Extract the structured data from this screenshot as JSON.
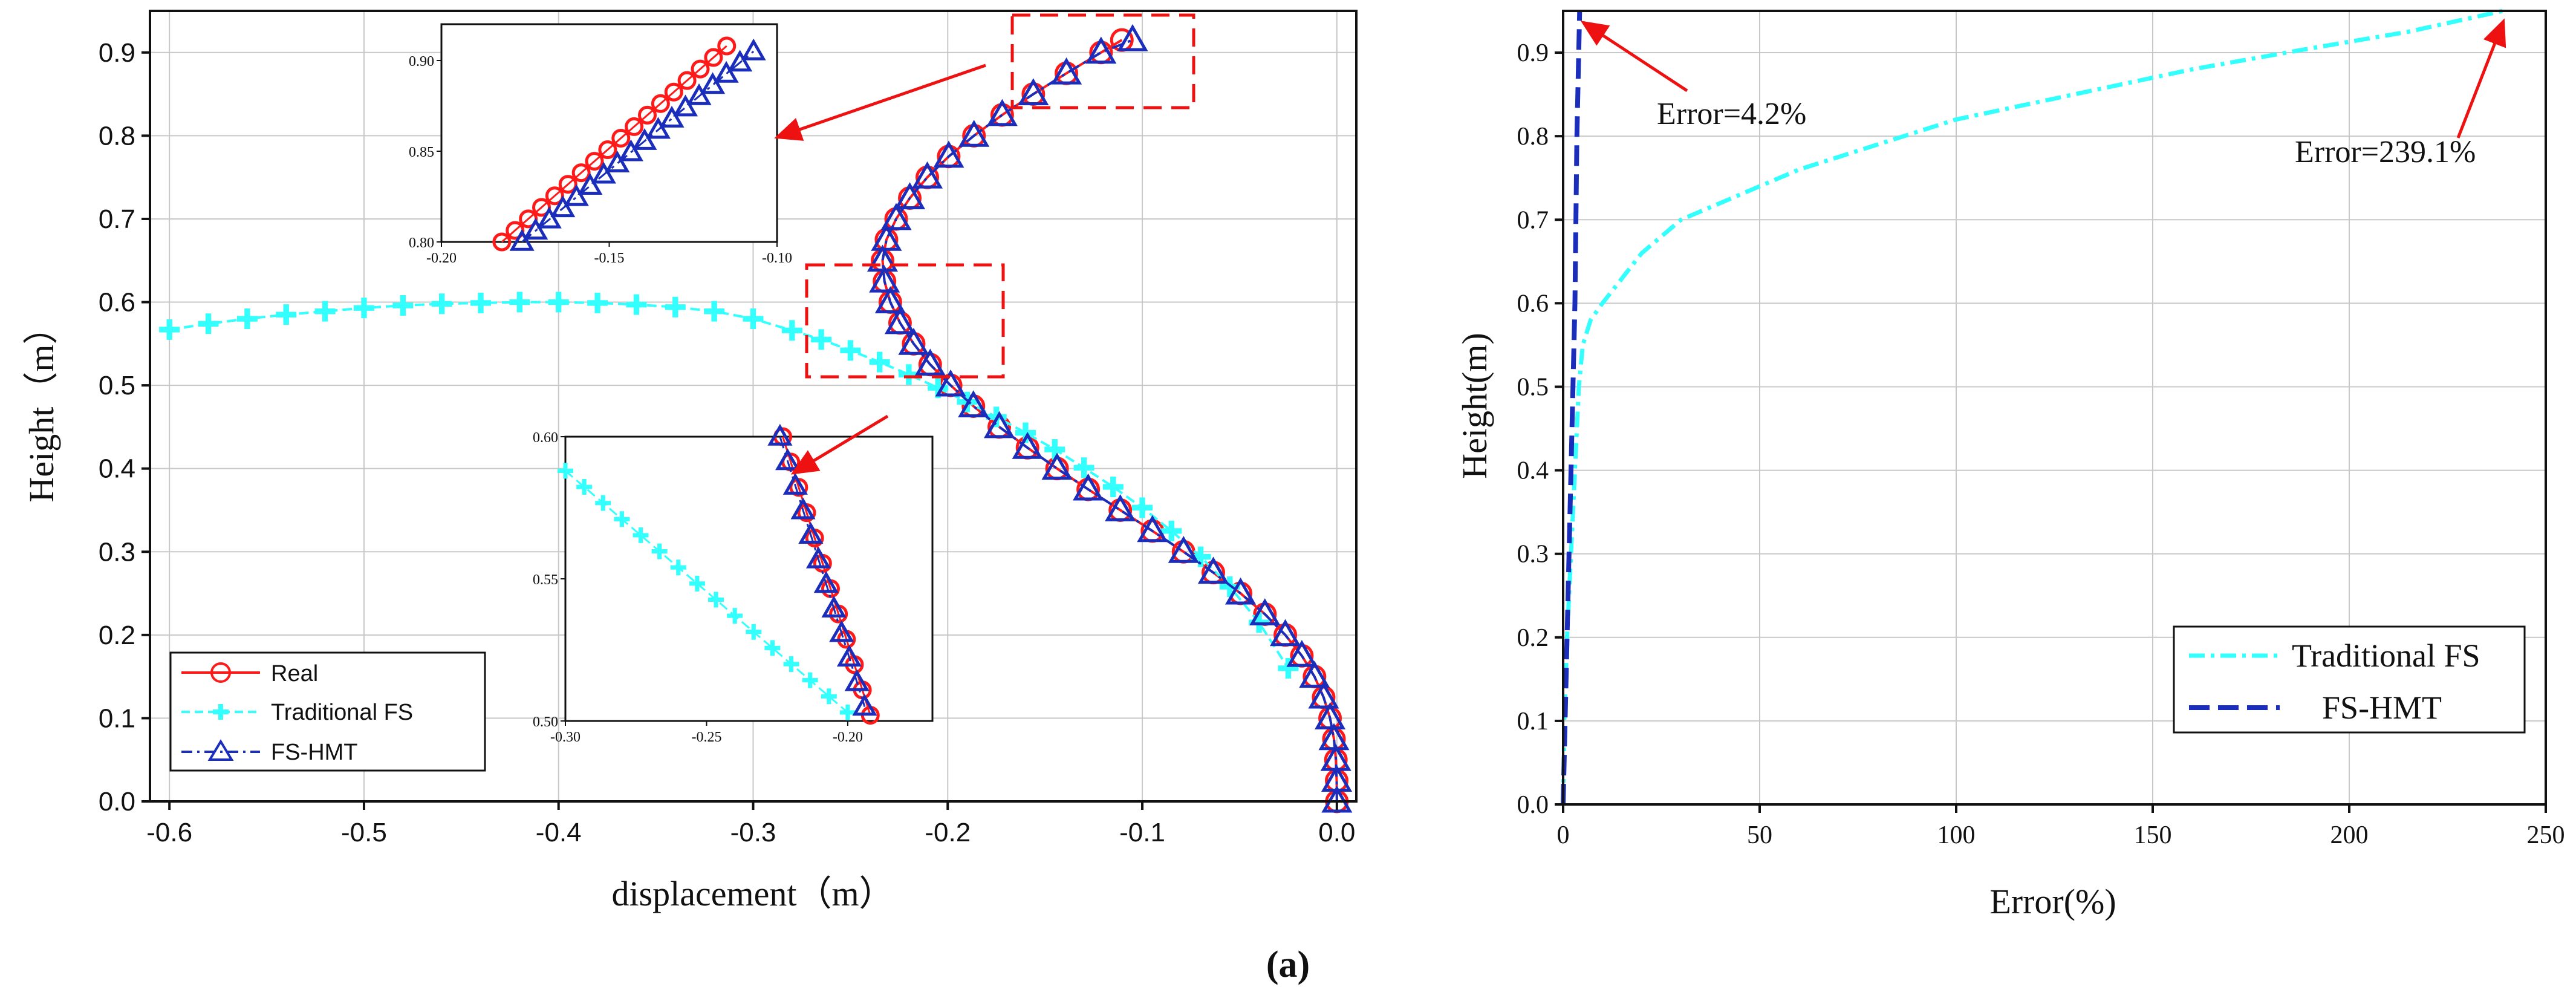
{
  "caption": "(a)",
  "colors": {
    "real": "#ff1a1a",
    "traditional": "#33ffff",
    "fshmt": "#1a2ebb",
    "arrow": "#ee1111"
  },
  "chart_data": [
    {
      "type": "line",
      "title": "",
      "xlabel": "displacement（m）",
      "ylabel": "Height（m）",
      "xlim": [
        -0.61,
        0.01
      ],
      "ylim": [
        0.0,
        0.95
      ],
      "xticks": [
        -0.6,
        -0.5,
        -0.4,
        -0.3,
        -0.2,
        -0.1,
        0.0
      ],
      "xtick_labels": [
        "-0.6",
        "-0.5",
        "-0.4",
        "-0.3",
        "-0.2",
        "-0.1",
        "0.0"
      ],
      "yticks": [
        0.0,
        0.1,
        0.2,
        0.3,
        0.4,
        0.5,
        0.6,
        0.7,
        0.8,
        0.9
      ],
      "ytick_labels": [
        "0.0",
        "0.1",
        "0.2",
        "0.3",
        "0.4",
        "0.5",
        "0.6",
        "0.7",
        "0.8",
        "0.9"
      ],
      "grid": true,
      "legend": "bottom-left",
      "series": [
        {
          "name": "Real",
          "marker": "circle",
          "x": [
            0,
            -0.0001,
            -0.0005,
            -0.0015,
            -0.0035,
            -0.0068,
            -0.0115,
            -0.018,
            -0.0265,
            -0.037,
            -0.0495,
            -0.0635,
            -0.0788,
            -0.0948,
            -0.1113,
            -0.1278,
            -0.1438,
            -0.159,
            -0.1735,
            -0.1868,
            -0.1985,
            -0.209,
            -0.2175,
            -0.2245,
            -0.2295,
            -0.2325,
            -0.2335,
            -0.2315,
            -0.2265,
            -0.2195,
            -0.2105,
            -0.1995,
            -0.1865,
            -0.172,
            -0.156,
            -0.139,
            -0.1212,
            -0.1105
          ],
          "y": [
            0,
            0.025,
            0.05,
            0.075,
            0.1,
            0.125,
            0.15,
            0.175,
            0.2,
            0.225,
            0.25,
            0.275,
            0.3,
            0.325,
            0.35,
            0.375,
            0.4,
            0.425,
            0.45,
            0.475,
            0.5,
            0.525,
            0.55,
            0.575,
            0.6,
            0.625,
            0.65,
            0.675,
            0.7,
            0.725,
            0.75,
            0.775,
            0.8,
            0.825,
            0.85,
            0.875,
            0.9,
            0.915
          ]
        },
        {
          "name": "Traditional FS",
          "marker": "plus",
          "x": [
            -0.6,
            -0.58,
            -0.56,
            -0.54,
            -0.52,
            -0.5,
            -0.48,
            -0.46,
            -0.44,
            -0.42,
            -0.4,
            -0.38,
            -0.36,
            -0.34,
            -0.32,
            -0.3,
            -0.28,
            -0.265,
            -0.25,
            -0.235,
            -0.22,
            -0.205,
            -0.19,
            -0.175,
            -0.16,
            -0.145,
            -0.13,
            -0.115,
            -0.1,
            -0.085,
            -0.07,
            -0.055,
            -0.04,
            -0.025
          ],
          "y": [
            0.567,
            0.574,
            0.58,
            0.585,
            0.589,
            0.593,
            0.596,
            0.598,
            0.599,
            0.6,
            0.6,
            0.599,
            0.597,
            0.594,
            0.589,
            0.58,
            0.566,
            0.555,
            0.542,
            0.528,
            0.513,
            0.497,
            0.48,
            0.462,
            0.443,
            0.423,
            0.401,
            0.378,
            0.353,
            0.325,
            0.294,
            0.258,
            0.215,
            0.16
          ]
        },
        {
          "name": "FS-HMT",
          "marker": "triangle",
          "x": [
            0,
            -0.0001,
            -0.0005,
            -0.0015,
            -0.0035,
            -0.0068,
            -0.0115,
            -0.018,
            -0.0265,
            -0.037,
            -0.0495,
            -0.0635,
            -0.0788,
            -0.0948,
            -0.1113,
            -0.1278,
            -0.1438,
            -0.159,
            -0.1735,
            -0.1868,
            -0.1985,
            -0.209,
            -0.2175,
            -0.2245,
            -0.2295,
            -0.2325,
            -0.2335,
            -0.2315,
            -0.2265,
            -0.2195,
            -0.2105,
            -0.1995,
            -0.1865,
            -0.172,
            -0.156,
            -0.139,
            -0.1212,
            -0.105
          ],
          "y": [
            0,
            0.025,
            0.05,
            0.075,
            0.1,
            0.125,
            0.15,
            0.175,
            0.2,
            0.225,
            0.25,
            0.275,
            0.3,
            0.325,
            0.35,
            0.375,
            0.4,
            0.425,
            0.45,
            0.475,
            0.5,
            0.525,
            0.55,
            0.575,
            0.6,
            0.625,
            0.65,
            0.675,
            0.7,
            0.725,
            0.75,
            0.775,
            0.8,
            0.825,
            0.85,
            0.875,
            0.9,
            0.915
          ]
        }
      ],
      "insets": [
        {
          "name": "top-inset",
          "xlim": [
            -0.2,
            -0.1
          ],
          "ylim": [
            0.8,
            0.92
          ],
          "xticks": [
            -0.2,
            -0.15,
            -0.1
          ],
          "xtick_labels": [
            "-0.20",
            "-0.15",
            "-0.10"
          ],
          "yticks": [
            0.8,
            0.85,
            0.9
          ],
          "ytick_labels": [
            "0.80",
            "0.85",
            "0.90"
          ],
          "series": [
            {
              "name": "Real",
              "x_start": -0.182,
              "x_end": -0.115,
              "y_start": 0.8,
              "y_end": 0.908,
              "count": 18
            },
            {
              "name": "FS-HMT",
              "x_start": -0.176,
              "x_end": -0.107,
              "y_start": 0.8,
              "y_end": 0.905,
              "count": 18
            }
          ]
        },
        {
          "name": "middle-inset",
          "xlim": [
            -0.3,
            -0.17
          ],
          "ylim": [
            0.5,
            0.6
          ],
          "xticks": [
            -0.3,
            -0.25,
            -0.2
          ],
          "xtick_labels": [
            "-0.30",
            "-0.25",
            "-0.20"
          ],
          "yticks": [
            0.5,
            0.55,
            0.6
          ],
          "ytick_labels": [
            "0.50",
            "0.55",
            "0.60"
          ],
          "series": [
            {
              "name": "Real",
              "x_start": -0.223,
              "x_end": -0.192,
              "y_start": 0.6,
              "y_end": 0.502,
              "count": 12
            },
            {
              "name": "Traditional FS",
              "x_start": -0.3,
              "x_end": -0.2,
              "y_start": 0.588,
              "y_end": 0.503,
              "count": 16
            },
            {
              "name": "FS-HMT",
              "x_start": -0.224,
              "x_end": -0.194,
              "y_start": 0.6,
              "y_end": 0.505,
              "count": 12
            }
          ]
        }
      ]
    },
    {
      "type": "line",
      "title": "",
      "xlabel": "Error(%)",
      "ylabel": "Height(m)",
      "xlim": [
        0,
        250
      ],
      "ylim": [
        0.0,
        0.95
      ],
      "xticks": [
        0,
        50,
        100,
        150,
        200,
        250
      ],
      "xtick_labels": [
        "0",
        "50",
        "100",
        "150",
        "200",
        "250"
      ],
      "yticks": [
        0.0,
        0.1,
        0.2,
        0.3,
        0.4,
        0.5,
        0.6,
        0.7,
        0.8,
        0.9
      ],
      "ytick_labels": [
        "0.0",
        "0.1",
        "0.2",
        "0.3",
        "0.4",
        "0.5",
        "0.6",
        "0.7",
        "0.8",
        "0.9"
      ],
      "grid": true,
      "legend": "bottom-right",
      "series": [
        {
          "name": "Traditional FS",
          "style": "dash-dot",
          "x": [
            0,
            0.3,
            1,
            2,
            3,
            4,
            5,
            7,
            10,
            15,
            20,
            30,
            45,
            60,
            80,
            100,
            130,
            160,
            190,
            215,
            239.1
          ],
          "y": [
            0,
            0.1,
            0.2,
            0.3,
            0.4,
            0.5,
            0.55,
            0.58,
            0.6,
            0.63,
            0.66,
            0.7,
            0.73,
            0.76,
            0.79,
            0.82,
            0.85,
            0.88,
            0.905,
            0.925,
            0.95
          ]
        },
        {
          "name": "FS-HMT",
          "style": "dashed",
          "x": [
            0,
            0.5,
            1,
            1.5,
            2,
            2.5,
            3,
            3.5,
            4.2
          ],
          "y": [
            0,
            0.1,
            0.2,
            0.3,
            0.4,
            0.5,
            0.6,
            0.8,
            0.95
          ]
        }
      ],
      "annotations": [
        "Error=4.2%",
        "Error=239.1%"
      ]
    }
  ]
}
